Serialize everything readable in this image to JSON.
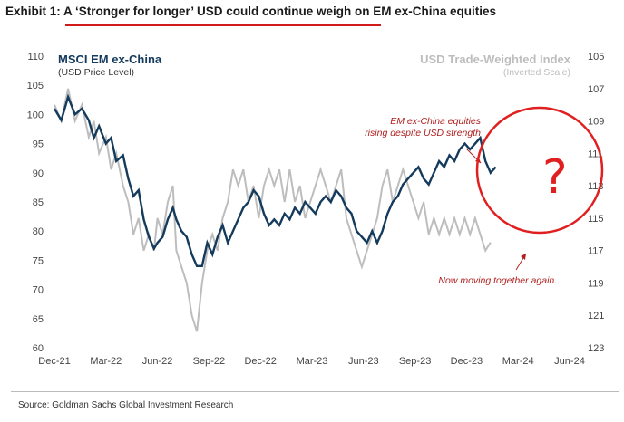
{
  "header": {
    "exhibit_label": "Exhibit 1:",
    "title_text": "A ‘Stronger for longer’ USD could continue weigh on EM ex-China equities"
  },
  "source": "Source: Goldman Sachs Global Investment Research",
  "annotations": {
    "question_mark": "?"
  },
  "colors": {
    "em": "#143a5c",
    "usd": "#bdbdbd",
    "annotation": "#b02020",
    "highlight": "#e02020"
  },
  "chart_data": {
    "type": "line",
    "title": "A ‘Stronger for longer’ USD could continue weigh on EM ex-China equities",
    "x_tick_labels": [
      "Dec-21",
      "Mar-22",
      "Jun-22",
      "Sep-22",
      "Dec-22",
      "Mar-23",
      "Jun-23",
      "Sep-23",
      "Dec-23",
      "Mar-24",
      "Jun-24"
    ],
    "y_left": {
      "label": "MSCI EM ex-China",
      "sublabel": "(USD Price Level)",
      "range": [
        60,
        110
      ],
      "ticks": [
        60,
        65,
        70,
        75,
        80,
        85,
        90,
        95,
        100,
        105,
        110
      ]
    },
    "y_right": {
      "label": "USD Trade-Weighted Index",
      "sublabel": "(Inverted Scale)",
      "range": [
        105,
        123
      ],
      "inverted": true,
      "ticks": [
        105,
        107,
        109,
        111,
        113,
        115,
        117,
        119,
        121,
        123
      ]
    },
    "x_unit": "months since Dec-21",
    "series": [
      {
        "name": "MSCI EM ex-China",
        "axis": "left",
        "points": [
          [
            0,
            101
          ],
          [
            0.4,
            99
          ],
          [
            0.8,
            103
          ],
          [
            1.2,
            100
          ],
          [
            1.6,
            101
          ],
          [
            2,
            99
          ],
          [
            2.3,
            96
          ],
          [
            2.6,
            98
          ],
          [
            3,
            95
          ],
          [
            3.3,
            96
          ],
          [
            3.6,
            92
          ],
          [
            4,
            93
          ],
          [
            4.3,
            89
          ],
          [
            4.6,
            86
          ],
          [
            4.9,
            87
          ],
          [
            5.2,
            82
          ],
          [
            5.5,
            79
          ],
          [
            5.8,
            77
          ],
          [
            6,
            78
          ],
          [
            6.3,
            79
          ],
          [
            6.6,
            82
          ],
          [
            6.9,
            84
          ],
          [
            7.1,
            82
          ],
          [
            7.4,
            80
          ],
          [
            7.7,
            79
          ],
          [
            8,
            76
          ],
          [
            8.3,
            74
          ],
          [
            8.6,
            74
          ],
          [
            8.9,
            78
          ],
          [
            9.2,
            76
          ],
          [
            9.5,
            79
          ],
          [
            9.8,
            81
          ],
          [
            10.1,
            78
          ],
          [
            10.4,
            80
          ],
          [
            10.7,
            82
          ],
          [
            11,
            84
          ],
          [
            11.3,
            85
          ],
          [
            11.6,
            87
          ],
          [
            11.9,
            86
          ],
          [
            12.2,
            83
          ],
          [
            12.5,
            81
          ],
          [
            12.8,
            82
          ],
          [
            13.1,
            81
          ],
          [
            13.4,
            83
          ],
          [
            13.7,
            82
          ],
          [
            14,
            84
          ],
          [
            14.3,
            83
          ],
          [
            14.6,
            85
          ],
          [
            14.9,
            84
          ],
          [
            15.2,
            83
          ],
          [
            15.5,
            85
          ],
          [
            15.8,
            86
          ],
          [
            16.1,
            85
          ],
          [
            16.4,
            87
          ],
          [
            16.7,
            86
          ],
          [
            17,
            84
          ],
          [
            17.3,
            83
          ],
          [
            17.6,
            80
          ],
          [
            17.9,
            79
          ],
          [
            18.2,
            78
          ],
          [
            18.5,
            80
          ],
          [
            18.8,
            78
          ],
          [
            19.1,
            80
          ],
          [
            19.4,
            83
          ],
          [
            19.7,
            85
          ],
          [
            20,
            86
          ],
          [
            20.3,
            88
          ],
          [
            20.6,
            89
          ],
          [
            20.9,
            90
          ],
          [
            21.2,
            91
          ],
          [
            21.5,
            89
          ],
          [
            21.8,
            88
          ],
          [
            22.1,
            90
          ],
          [
            22.4,
            92
          ],
          [
            22.7,
            91
          ],
          [
            23,
            93
          ],
          [
            23.3,
            92
          ],
          [
            23.6,
            94
          ],
          [
            23.9,
            95
          ],
          [
            24.2,
            94
          ],
          [
            24.5,
            95
          ],
          [
            24.8,
            96
          ],
          [
            25.1,
            92
          ],
          [
            25.4,
            90
          ],
          [
            25.7,
            91
          ]
        ]
      },
      {
        "name": "USD Trade-Weighted Index",
        "axis": "right",
        "points": [
          [
            0,
            108
          ],
          [
            0.4,
            109
          ],
          [
            0.8,
            107
          ],
          [
            1.2,
            109
          ],
          [
            1.6,
            108
          ],
          [
            2,
            110
          ],
          [
            2.3,
            109
          ],
          [
            2.6,
            111
          ],
          [
            3,
            110
          ],
          [
            3.3,
            112
          ],
          [
            3.6,
            111
          ],
          [
            4,
            113
          ],
          [
            4.3,
            114
          ],
          [
            4.6,
            116
          ],
          [
            4.9,
            115
          ],
          [
            5.2,
            117
          ],
          [
            5.5,
            116
          ],
          [
            5.8,
            117
          ],
          [
            6,
            115
          ],
          [
            6.3,
            116
          ],
          [
            6.6,
            114
          ],
          [
            6.9,
            113
          ],
          [
            7.1,
            117
          ],
          [
            7.4,
            118
          ],
          [
            7.7,
            119
          ],
          [
            8,
            121
          ],
          [
            8.3,
            122
          ],
          [
            8.6,
            119
          ],
          [
            8.9,
            117
          ],
          [
            9.2,
            116
          ],
          [
            9.5,
            117
          ],
          [
            9.8,
            115
          ],
          [
            10.1,
            114
          ],
          [
            10.4,
            112
          ],
          [
            10.7,
            113
          ],
          [
            11,
            112
          ],
          [
            11.3,
            114
          ],
          [
            11.6,
            113
          ],
          [
            11.9,
            115
          ],
          [
            12.2,
            113
          ],
          [
            12.5,
            112
          ],
          [
            12.8,
            113
          ],
          [
            13.1,
            112
          ],
          [
            13.4,
            114
          ],
          [
            13.7,
            112
          ],
          [
            14,
            114
          ],
          [
            14.3,
            113
          ],
          [
            14.6,
            115
          ],
          [
            14.9,
            114
          ],
          [
            15.2,
            113
          ],
          [
            15.5,
            112
          ],
          [
            15.8,
            113
          ],
          [
            16.1,
            114
          ],
          [
            16.4,
            113
          ],
          [
            16.7,
            112
          ],
          [
            17,
            115
          ],
          [
            17.3,
            116
          ],
          [
            17.6,
            117
          ],
          [
            17.9,
            118
          ],
          [
            18.2,
            117
          ],
          [
            18.5,
            116
          ],
          [
            18.8,
            115
          ],
          [
            19.1,
            113
          ],
          [
            19.4,
            112
          ],
          [
            19.7,
            114
          ],
          [
            20,
            113
          ],
          [
            20.3,
            112
          ],
          [
            20.6,
            113
          ],
          [
            20.9,
            114
          ],
          [
            21.2,
            115
          ],
          [
            21.5,
            114
          ],
          [
            21.8,
            116
          ],
          [
            22.1,
            115
          ],
          [
            22.4,
            116
          ],
          [
            22.7,
            115
          ],
          [
            23,
            116
          ],
          [
            23.3,
            115
          ],
          [
            23.6,
            116
          ],
          [
            23.9,
            115
          ],
          [
            24.2,
            116
          ],
          [
            24.5,
            115
          ],
          [
            24.8,
            116
          ],
          [
            25.1,
            117
          ],
          [
            25.4,
            116.5
          ]
        ]
      }
    ],
    "annotations": [
      {
        "text_lines": [
          "EM ex-China equities",
          "rising despite USD strength"
        ]
      },
      {
        "text_lines": [
          "Now moving together again..."
        ]
      }
    ],
    "grid": false
  }
}
